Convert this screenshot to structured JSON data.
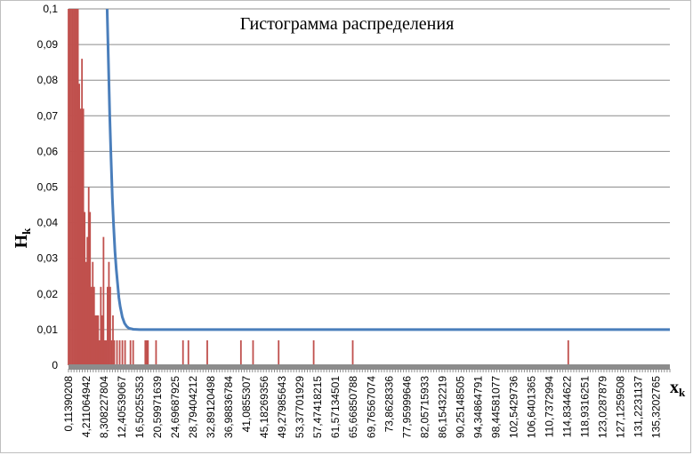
{
  "chart_data": {
    "type": "bar",
    "title": "Гистограмма распределения",
    "ylabel": "H",
    "ylabel_sub": "k",
    "xlabel": "x",
    "xlabel_sub": "k",
    "ylim": [
      0,
      0.1
    ],
    "xlim": [
      0.11,
      138.5
    ],
    "grid": true,
    "legend": "none",
    "y_ticks": [
      "0",
      "0,01",
      "0,02",
      "0,03",
      "0,04",
      "0,05",
      "0,06",
      "0,07",
      "0,08",
      "0,09",
      "0,1"
    ],
    "x_ticks": [
      {
        "value": 0.11390208,
        "label": "0,11390208"
      },
      {
        "value": 4.211064942,
        "label": "4,211064942"
      },
      {
        "value": 8.308227804,
        "label": "8,308227804"
      },
      {
        "value": 12.40539067,
        "label": "12,40539067"
      },
      {
        "value": 16.50255353,
        "label": "16,50255353"
      },
      {
        "value": 20.59971639,
        "label": "20,59971639"
      },
      {
        "value": 24.69687925,
        "label": "24,69687925"
      },
      {
        "value": 28.79404212,
        "label": "28,79404212"
      },
      {
        "value": 32.89120498,
        "label": "32,89120498"
      },
      {
        "value": 36.98836784,
        "label": "36,98836784"
      },
      {
        "value": 41.0855307,
        "label": "41,0855307"
      },
      {
        "value": 45.18269356,
        "label": "45,18269356"
      },
      {
        "value": 49.27985643,
        "label": "49,27985643"
      },
      {
        "value": 53.37701929,
        "label": "53,37701929"
      },
      {
        "value": 57.47418215,
        "label": "57,47418215"
      },
      {
        "value": 61.57134501,
        "label": "61,57134501"
      },
      {
        "value": 65.66850788,
        "label": "65,66850788"
      },
      {
        "value": 69.76567074,
        "label": "69,76567074"
      },
      {
        "value": 73.8628336,
        "label": "73,8628336"
      },
      {
        "value": 77.95999646,
        "label": "77,95999646"
      },
      {
        "value": 82.05715933,
        "label": "82,05715933"
      },
      {
        "value": 86.15432219,
        "label": "86,15432219"
      },
      {
        "value": 90.25148505,
        "label": "90,25148505"
      },
      {
        "value": 94.34864791,
        "label": "94,34864791"
      },
      {
        "value": 98.44581077,
        "label": "98,44581077"
      },
      {
        "value": 102.5429736,
        "label": "102,5429736"
      },
      {
        "value": 106.6401365,
        "label": "106,6401365"
      },
      {
        "value": 110.7372994,
        "label": "110,7372994"
      },
      {
        "value": 114.8344622,
        "label": "114,8344622"
      },
      {
        "value": 118.9316251,
        "label": "118,9316251"
      },
      {
        "value": 123.0287879,
        "label": "123,0287879"
      },
      {
        "value": 127.1259508,
        "label": "127,1259508"
      },
      {
        "value": 131.2231137,
        "label": "131,2231137"
      },
      {
        "value": 135.3202765,
        "label": "135,3202765"
      }
    ],
    "series": [
      {
        "type": "bar",
        "color": "#c0504d",
        "bars": [
          {
            "x": 0.11,
            "y": 0.1
          },
          {
            "x": 0.42,
            "y": 0.1
          },
          {
            "x": 0.73,
            "y": 0.1
          },
          {
            "x": 1.04,
            "y": 0.1
          },
          {
            "x": 1.35,
            "y": 0.1
          },
          {
            "x": 1.66,
            "y": 0.1
          },
          {
            "x": 1.97,
            "y": 0.1
          },
          {
            "x": 2.28,
            "y": 0.1
          },
          {
            "x": 2.59,
            "y": 0.079
          },
          {
            "x": 2.9,
            "y": 0.072
          },
          {
            "x": 3.21,
            "y": 0.086
          },
          {
            "x": 3.52,
            "y": 0.072
          },
          {
            "x": 3.83,
            "y": 0.043
          },
          {
            "x": 4.14,
            "y": 0.029
          },
          {
            "x": 4.45,
            "y": 0.036
          },
          {
            "x": 4.76,
            "y": 0.05
          },
          {
            "x": 5.07,
            "y": 0.043
          },
          {
            "x": 5.38,
            "y": 0.022
          },
          {
            "x": 5.69,
            "y": 0.029
          },
          {
            "x": 6.0,
            "y": 0.022
          },
          {
            "x": 6.31,
            "y": 0.014
          },
          {
            "x": 6.62,
            "y": 0.014
          },
          {
            "x": 6.93,
            "y": 0.014
          },
          {
            "x": 7.24,
            "y": 0.007
          },
          {
            "x": 7.55,
            "y": 0.022
          },
          {
            "x": 7.86,
            "y": 0.014
          },
          {
            "x": 8.17,
            "y": 0.036
          },
          {
            "x": 8.48,
            "y": 0.007
          },
          {
            "x": 8.79,
            "y": 0.007
          },
          {
            "x": 9.1,
            "y": 0.022
          },
          {
            "x": 9.41,
            "y": 0.029
          },
          {
            "x": 9.72,
            "y": 0.022
          },
          {
            "x": 10.03,
            "y": 0.007
          },
          {
            "x": 10.34,
            "y": 0.014
          },
          {
            "x": 10.65,
            "y": 0.007
          },
          {
            "x": 11.27,
            "y": 0.007
          },
          {
            "x": 11.89,
            "y": 0.007
          },
          {
            "x": 12.51,
            "y": 0.007
          },
          {
            "x": 13.13,
            "y": 0.007
          },
          {
            "x": 14.37,
            "y": 0.007
          },
          {
            "x": 14.99,
            "y": 0.007
          },
          {
            "x": 17.78,
            "y": 0.007
          },
          {
            "x": 18.09,
            "y": 0.007
          },
          {
            "x": 18.4,
            "y": 0.007
          },
          {
            "x": 20.26,
            "y": 0.007
          },
          {
            "x": 26.46,
            "y": 0.007
          },
          {
            "x": 27.7,
            "y": 0.007
          },
          {
            "x": 32.04,
            "y": 0.007
          },
          {
            "x": 39.79,
            "y": 0.007
          },
          {
            "x": 42.58,
            "y": 0.007
          },
          {
            "x": 48.47,
            "y": 0.007
          },
          {
            "x": 56.53,
            "y": 0.007
          },
          {
            "x": 65.52,
            "y": 0.007
          },
          {
            "x": 115.12,
            "y": 0.007
          }
        ]
      },
      {
        "type": "line",
        "color": "#4a7ebb",
        "points": [
          {
            "x": 9.0,
            "y": 0.1
          },
          {
            "x": 9.3,
            "y": 0.085
          },
          {
            "x": 9.6,
            "y": 0.07
          },
          {
            "x": 9.9,
            "y": 0.058
          },
          {
            "x": 10.2,
            "y": 0.047
          },
          {
            "x": 10.5,
            "y": 0.039
          },
          {
            "x": 10.8,
            "y": 0.032
          },
          {
            "x": 11.1,
            "y": 0.027
          },
          {
            "x": 11.4,
            "y": 0.023
          },
          {
            "x": 11.7,
            "y": 0.019
          },
          {
            "x": 12.0,
            "y": 0.0165
          },
          {
            "x": 12.5,
            "y": 0.0135
          },
          {
            "x": 13.0,
            "y": 0.0118
          },
          {
            "x": 13.5,
            "y": 0.0109
          },
          {
            "x": 14.0,
            "y": 0.0104
          },
          {
            "x": 15.0,
            "y": 0.0101
          },
          {
            "x": 16.5,
            "y": 0.01
          },
          {
            "x": 20.0,
            "y": 0.01
          },
          {
            "x": 40.0,
            "y": 0.01
          },
          {
            "x": 80.0,
            "y": 0.01
          },
          {
            "x": 120.0,
            "y": 0.01
          },
          {
            "x": 138.5,
            "y": 0.01
          }
        ]
      }
    ]
  }
}
